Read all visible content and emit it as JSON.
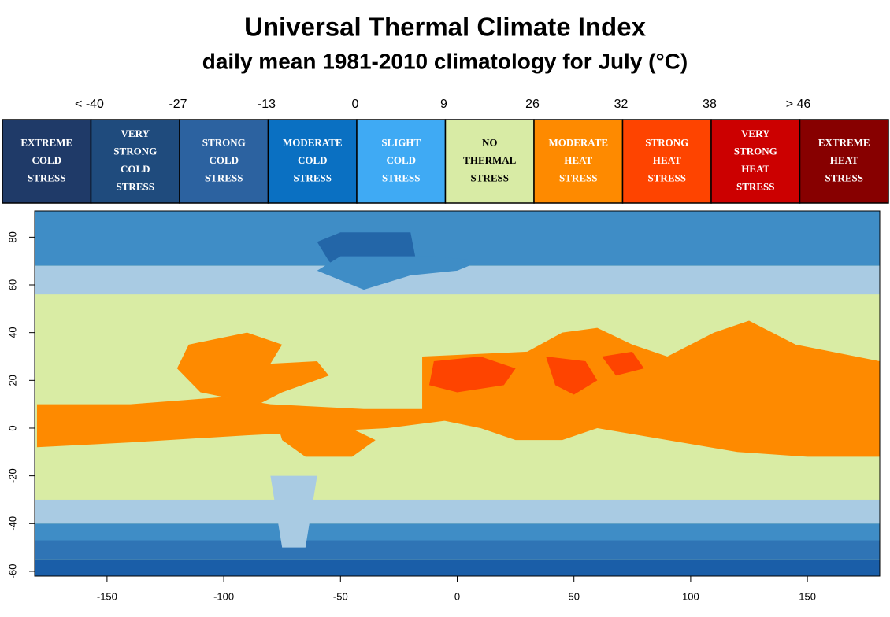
{
  "title": "Universal Thermal Climate Index",
  "subtitle": "daily mean 1981-2010 climatology for July (°C)",
  "legend": {
    "thresholds": [
      "< -40",
      "-27",
      "-13",
      "0",
      "9",
      "26",
      "32",
      "38",
      "> 46"
    ],
    "items": [
      {
        "lines": [
          "EXTREME",
          "COLD",
          "STRESS"
        ],
        "color": "#1f3a68"
      },
      {
        "lines": [
          "VERY",
          "STRONG",
          "COLD",
          "STRESS"
        ],
        "color": "#1f4b7d"
      },
      {
        "lines": [
          "STRONG",
          "COLD",
          "STRESS"
        ],
        "color": "#2c62a0"
      },
      {
        "lines": [
          "MODERATE",
          "COLD",
          "STRESS"
        ],
        "color": "#0a70c2"
      },
      {
        "lines": [
          "SLIGHT",
          "COLD",
          "STRESS"
        ],
        "color": "#3faaf4"
      },
      {
        "lines": [
          "NO",
          "THERMAL",
          "STRESS"
        ],
        "color": "#d8eba5"
      },
      {
        "lines": [
          "MODERATE",
          "HEAT",
          "STRESS"
        ],
        "color": "#fe8a00"
      },
      {
        "lines": [
          "STRONG",
          "HEAT",
          "STRESS"
        ],
        "color": "#fe4400"
      },
      {
        "lines": [
          "VERY",
          "STRONG",
          "HEAT",
          "STRESS"
        ],
        "color": "#cc0000"
      },
      {
        "lines": [
          "EXTREME",
          "HEAT",
          "STRESS"
        ],
        "color": "#870000"
      }
    ]
  },
  "map": {
    "xlim": [
      -181,
      181
    ],
    "ylim": [
      -62,
      91
    ],
    "xticks": [
      -150,
      -100,
      -50,
      0,
      50,
      100,
      150
    ],
    "yticks": [
      -60,
      -40,
      -20,
      0,
      20,
      40,
      60,
      80
    ]
  }
}
